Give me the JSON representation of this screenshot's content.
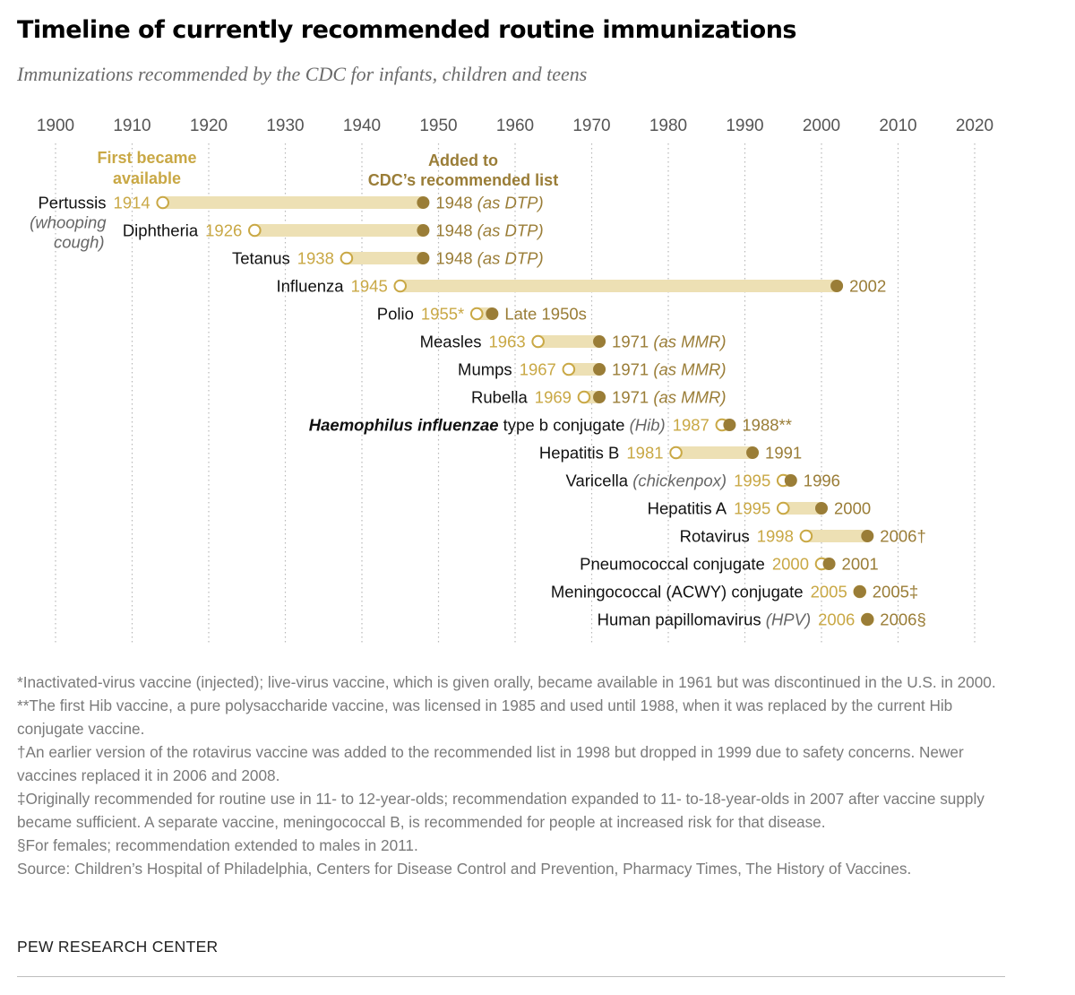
{
  "title": "Timeline of currently recommended routine immunizations",
  "subtitle": "Immunizations recommended by the CDC for infants, children and teens",
  "colors": {
    "available": "#c9a845",
    "recommended": "#9a7d37",
    "bar": "#ede0b4",
    "grid": "#b8b8b8"
  },
  "chart_data": {
    "type": "timeline",
    "xlim": [
      1900,
      2020
    ],
    "xticks": [
      1900,
      1910,
      1920,
      1930,
      1940,
      1950,
      1960,
      1970,
      1980,
      1990,
      2000,
      2010,
      2020
    ],
    "legend": {
      "available": "First became available",
      "recommended": "Added to CDC’s recommended list"
    },
    "rows": [
      {
        "name": "Pertussis",
        "note": "(whooping cough)",
        "start": 1914,
        "end": 1948,
        "start_label": "1914",
        "end_label": "1948",
        "end_note": "(as DTP)"
      },
      {
        "name": "Diphtheria",
        "start": 1926,
        "end": 1948,
        "start_label": "1926",
        "end_label": "1948",
        "end_note": "(as DTP)"
      },
      {
        "name": "Tetanus",
        "start": 1938,
        "end": 1948,
        "start_label": "1938",
        "end_label": "1948",
        "end_note": "(as DTP)"
      },
      {
        "name": "Influenza",
        "start": 1945,
        "end": 2002,
        "start_label": "1945",
        "end_label": "2002"
      },
      {
        "name": "Polio",
        "start": 1955,
        "end": 1957,
        "start_label": "1955*",
        "end_label": "Late 1950s"
      },
      {
        "name": "Measles",
        "start": 1963,
        "end": 1971,
        "start_label": "1963",
        "end_label": "1971",
        "end_note": "(as MMR)"
      },
      {
        "name": "Mumps",
        "start": 1967,
        "end": 1971,
        "start_label": "1967",
        "end_label": "1971",
        "end_note": "(as MMR)"
      },
      {
        "name": "Rubella",
        "start": 1969,
        "end": 1971,
        "start_label": "1969",
        "end_label": "1971",
        "end_note": "(as MMR)"
      },
      {
        "name_italic": "Haemophilus influenzae",
        "name": " type b conjugate",
        "note": " (Hib)",
        "start": 1987,
        "end": 1988,
        "start_label": "1987",
        "end_label": "1988**"
      },
      {
        "name": "Hepatitis B",
        "start": 1981,
        "end": 1991,
        "start_label": "1981",
        "end_label": "1991"
      },
      {
        "name": "Varicella",
        "note": " (chickenpox)",
        "start": 1995,
        "end": 1996,
        "start_label": "1995",
        "end_label": "1996"
      },
      {
        "name": "Hepatitis A",
        "start": 1995,
        "end": 2000,
        "start_label": "1995",
        "end_label": "2000"
      },
      {
        "name": "Rotavirus",
        "start": 1998,
        "end": 2006,
        "start_label": "1998",
        "end_label": "2006†"
      },
      {
        "name": "Pneumococcal conjugate",
        "start": 2000,
        "end": 2001,
        "start_label": "2000",
        "end_label": "2001"
      },
      {
        "name": "Meningococcal (ACWY) conjugate",
        "start": 2005,
        "end": 2005,
        "start_label": "2005",
        "end_label": "2005‡"
      },
      {
        "name": "Human papillomavirus",
        "note": " (HPV)",
        "start": 2006,
        "end": 2006,
        "start_label": "2006",
        "end_label": "2006§"
      }
    ]
  },
  "notes": [
    "*Inactivated-virus vaccine (injected); live-virus vaccine, which is given orally, became available in 1961 but was discontinued in the U.S. in 2000.",
    "**The first Hib vaccine, a pure polysaccharide vaccine, was licensed in 1985 and used until 1988, when it was replaced by the current Hib conjugate vaccine.",
    "†An earlier version of the rotavirus vaccine was added to the recommended list in 1998 but dropped in 1999 due to safety concerns. Newer vaccines replaced it in 2006 and 2008.",
    "‡Originally recommended for routine use in 11- to 12-year-olds; recommendation expanded to 11- to-18-year-olds in 2007 after vaccine supply became sufficient. A separate vaccine, meningococcal B, is recommended for people at increased risk for that disease.",
    "§For females; recommendation extended to males in 2011.",
    "Source: Children’s Hospital of Philadelphia, Centers for Disease Control and Prevention, Pharmacy Times, The History of Vaccines."
  ],
  "brand": "PEW RESEARCH CENTER"
}
